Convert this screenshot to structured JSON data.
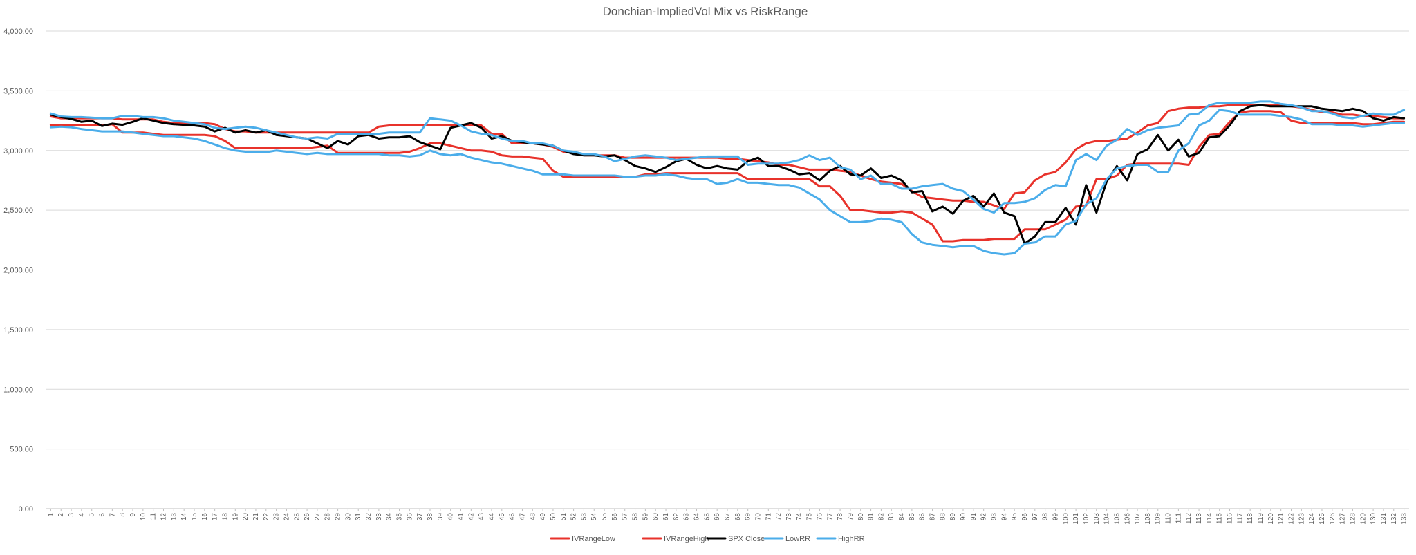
{
  "chart_data": {
    "type": "line",
    "title": "Donchian-ImpliedVol Mix vs RiskRange",
    "xlabel": "",
    "ylabel": "",
    "ylim": [
      0,
      4000
    ],
    "yticks": [
      "0.00",
      "500.00",
      "1,000.00",
      "1,500.00",
      "2,000.00",
      "2,500.00",
      "3,000.00",
      "3,500.00",
      "4,000.00"
    ],
    "grid": true,
    "legend_position": "bottom",
    "x_count": 133,
    "series": [
      {
        "name": "IVRangeLow",
        "color": "#e8322b",
        "values": [
          3215,
          3210,
          3210,
          3210,
          3210,
          3210,
          3220,
          3150,
          3150,
          3150,
          3140,
          3130,
          3130,
          3130,
          3130,
          3130,
          3120,
          3080,
          3020,
          3020,
          3020,
          3020,
          3020,
          3020,
          3020,
          3020,
          3030,
          3040,
          2980,
          2980,
          2980,
          2980,
          2980,
          2980,
          2980,
          2990,
          3020,
          3060,
          3060,
          3040,
          3020,
          3000,
          3000,
          2990,
          2960,
          2950,
          2950,
          2940,
          2930,
          2830,
          2780,
          2780,
          2780,
          2780,
          2780,
          2780,
          2780,
          2780,
          2800,
          2800,
          2810,
          2810,
          2810,
          2810,
          2810,
          2810,
          2810,
          2810,
          2760,
          2760,
          2760,
          2760,
          2760,
          2760,
          2760,
          2700,
          2700,
          2620,
          2500,
          2500,
          2490,
          2480,
          2480,
          2490,
          2480,
          2430,
          2380,
          2240,
          2240,
          2250,
          2250,
          2250,
          2260,
          2260,
          2260,
          2340,
          2340,
          2340,
          2380,
          2420,
          2530,
          2540,
          2760,
          2760,
          2790,
          2880,
          2890,
          2890,
          2890,
          2890,
          2890,
          2880,
          3030,
          3130,
          3140,
          3240,
          3320,
          3330,
          3330,
          3330,
          3320,
          3250,
          3230,
          3230,
          3230,
          3230,
          3230,
          3230,
          3220,
          3220,
          3230,
          3240,
          3240
        ]
      },
      {
        "name": "IVRangeHigh",
        "color": "#e8322b",
        "values": [
          3285,
          3270,
          3270,
          3270,
          3270,
          3270,
          3270,
          3260,
          3260,
          3260,
          3260,
          3240,
          3230,
          3230,
          3230,
          3230,
          3220,
          3180,
          3160,
          3160,
          3150,
          3150,
          3150,
          3150,
          3150,
          3150,
          3150,
          3150,
          3150,
          3150,
          3150,
          3150,
          3200,
          3210,
          3210,
          3210,
          3210,
          3210,
          3210,
          3210,
          3210,
          3210,
          3210,
          3140,
          3140,
          3060,
          3060,
          3060,
          3050,
          3030,
          2990,
          2980,
          2960,
          2960,
          2960,
          2960,
          2940,
          2940,
          2940,
          2940,
          2940,
          2940,
          2940,
          2940,
          2940,
          2940,
          2930,
          2930,
          2920,
          2910,
          2900,
          2880,
          2880,
          2860,
          2840,
          2840,
          2840,
          2830,
          2820,
          2790,
          2760,
          2740,
          2730,
          2720,
          2660,
          2610,
          2600,
          2590,
          2580,
          2580,
          2570,
          2570,
          2540,
          2510,
          2640,
          2650,
          2750,
          2800,
          2820,
          2900,
          3010,
          3060,
          3080,
          3080,
          3090,
          3100,
          3150,
          3210,
          3230,
          3330,
          3350,
          3360,
          3360,
          3370,
          3370,
          3380,
          3380,
          3380,
          3380,
          3380,
          3380,
          3370,
          3360,
          3340,
          3320,
          3320,
          3300,
          3300,
          3290,
          3290,
          3280,
          3270,
          3270
        ]
      },
      {
        "name": "SPX Close",
        "color": "#000000",
        "values": [
          3300,
          3280,
          3265,
          3240,
          3250,
          3205,
          3225,
          3215,
          3240,
          3270,
          3250,
          3230,
          3220,
          3215,
          3210,
          3200,
          3160,
          3190,
          3150,
          3170,
          3150,
          3170,
          3130,
          3120,
          3110,
          3100,
          3060,
          3020,
          3080,
          3050,
          3120,
          3130,
          3100,
          3110,
          3110,
          3120,
          3070,
          3040,
          3010,
          3190,
          3210,
          3230,
          3190,
          3100,
          3120,
          3080,
          3070,
          3060,
          3050,
          3040,
          3000,
          2970,
          2960,
          2960,
          2950,
          2960,
          2920,
          2870,
          2850,
          2820,
          2860,
          2910,
          2930,
          2880,
          2850,
          2870,
          2850,
          2840,
          2910,
          2940,
          2870,
          2870,
          2840,
          2800,
          2810,
          2750,
          2830,
          2870,
          2800,
          2790,
          2850,
          2770,
          2790,
          2750,
          2650,
          2660,
          2490,
          2530,
          2470,
          2580,
          2620,
          2530,
          2640,
          2480,
          2450,
          2220,
          2280,
          2400,
          2400,
          2520,
          2380,
          2710,
          2480,
          2740,
          2870,
          2750,
          2970,
          3010,
          3130,
          3000,
          3090,
          2950,
          2980,
          3110,
          3120,
          3210,
          3330,
          3370,
          3380,
          3370,
          3370,
          3370,
          3370,
          3370,
          3350,
          3340,
          3330,
          3350,
          3330,
          3270,
          3250,
          3280,
          3270
        ]
      },
      {
        "name": "LowRR",
        "color": "#4badea",
        "values": [
          3195,
          3200,
          3195,
          3180,
          3170,
          3160,
          3160,
          3160,
          3150,
          3140,
          3130,
          3120,
          3120,
          3110,
          3100,
          3080,
          3050,
          3020,
          3000,
          2990,
          2990,
          2985,
          3000,
          2990,
          2980,
          2970,
          2980,
          2970,
          2970,
          2970,
          2970,
          2970,
          2970,
          2960,
          2960,
          2950,
          2960,
          3000,
          2970,
          2960,
          2970,
          2940,
          2920,
          2900,
          2890,
          2870,
          2850,
          2830,
          2800,
          2800,
          2800,
          2790,
          2790,
          2790,
          2790,
          2790,
          2780,
          2780,
          2790,
          2790,
          2800,
          2790,
          2770,
          2760,
          2760,
          2720,
          2730,
          2760,
          2730,
          2730,
          2720,
          2710,
          2710,
          2690,
          2640,
          2590,
          2500,
          2450,
          2400,
          2400,
          2410,
          2430,
          2420,
          2400,
          2300,
          2230,
          2210,
          2200,
          2190,
          2200,
          2200,
          2160,
          2140,
          2130,
          2140,
          2220,
          2230,
          2280,
          2280,
          2380,
          2410,
          2550,
          2600,
          2760,
          2850,
          2870,
          2880,
          2880,
          2820,
          2820,
          3000,
          3060,
          3210,
          3250,
          3340,
          3330,
          3300,
          3300,
          3300,
          3300,
          3290,
          3280,
          3260,
          3220,
          3220,
          3220,
          3210,
          3210,
          3200,
          3210,
          3220,
          3230,
          3230
        ]
      },
      {
        "name": "HighRR",
        "color": "#4badea",
        "values": [
          3310,
          3285,
          3280,
          3280,
          3275,
          3270,
          3270,
          3290,
          3290,
          3280,
          3280,
          3270,
          3250,
          3240,
          3230,
          3220,
          3190,
          3180,
          3190,
          3200,
          3190,
          3170,
          3150,
          3130,
          3110,
          3100,
          3110,
          3100,
          3140,
          3140,
          3140,
          3140,
          3140,
          3150,
          3150,
          3150,
          3150,
          3270,
          3260,
          3250,
          3210,
          3160,
          3140,
          3130,
          3100,
          3080,
          3080,
          3060,
          3060,
          3040,
          3000,
          2990,
          2970,
          2970,
          2950,
          2910,
          2930,
          2950,
          2960,
          2950,
          2940,
          2920,
          2930,
          2940,
          2950,
          2950,
          2950,
          2950,
          2880,
          2890,
          2890,
          2890,
          2900,
          2920,
          2960,
          2920,
          2940,
          2860,
          2840,
          2760,
          2790,
          2720,
          2720,
          2680,
          2680,
          2700,
          2710,
          2720,
          2680,
          2660,
          2590,
          2510,
          2480,
          2560,
          2560,
          2570,
          2600,
          2670,
          2710,
          2700,
          2920,
          2970,
          2920,
          3040,
          3090,
          3180,
          3130,
          3170,
          3190,
          3200,
          3210,
          3300,
          3310,
          3380,
          3400,
          3400,
          3400,
          3400,
          3410,
          3410,
          3390,
          3380,
          3360,
          3330,
          3330,
          3310,
          3280,
          3270,
          3290,
          3310,
          3300,
          3300,
          3340
        ]
      }
    ]
  }
}
